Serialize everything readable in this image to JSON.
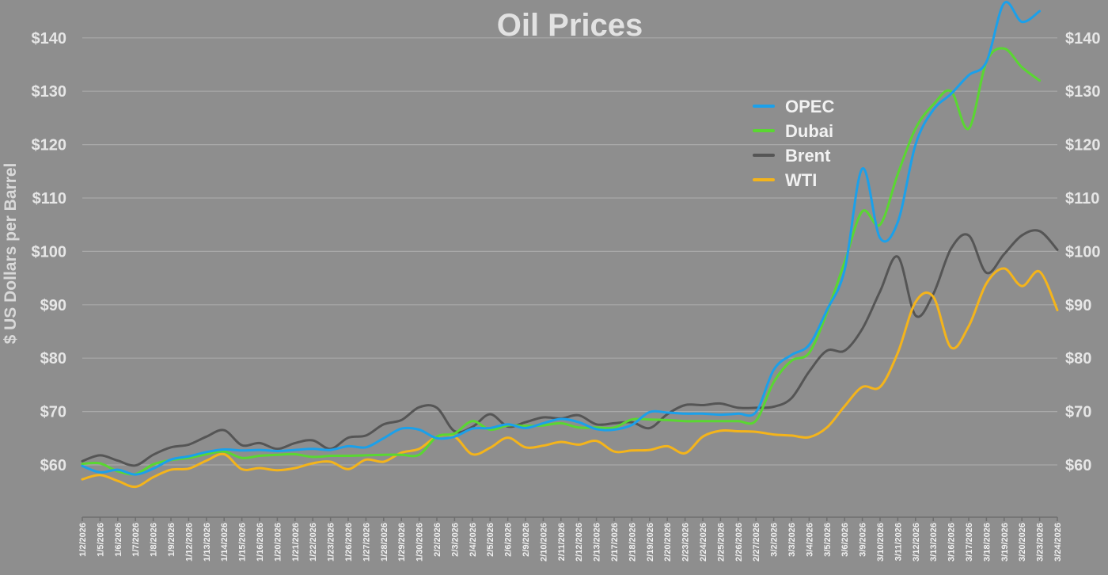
{
  "chart_data": {
    "type": "line",
    "title": "Oil Prices",
    "ylabel": "$ US Dollars per Barrel",
    "ylim": [
      50,
      148
    ],
    "y_ticks": [
      60,
      70,
      80,
      90,
      100,
      110,
      120,
      130,
      140
    ],
    "y_tick_labels": [
      "$60",
      "$70",
      "$80",
      "$90",
      "$100",
      "$110",
      "$120",
      "$130",
      "$140"
    ],
    "legend_position": "upper-right",
    "grid": true,
    "categories": [
      "1/2/2026",
      "1/5/2026",
      "1/6/2026",
      "1/7/2026",
      "1/8/2026",
      "1/9/2026",
      "1/12/2026",
      "1/13/2026",
      "1/14/2026",
      "1/15/2026",
      "1/16/2026",
      "1/20/2026",
      "1/21/2026",
      "1/22/2026",
      "1/23/2026",
      "1/26/2026",
      "1/27/2026",
      "1/28/2026",
      "1/29/2026",
      "1/30/2026",
      "2/2/2026",
      "2/3/2026",
      "2/4/2026",
      "2/5/2026",
      "2/6/2026",
      "2/9/2026",
      "2/10/2026",
      "2/11/2026",
      "2/12/2026",
      "2/13/2026",
      "2/17/2026",
      "2/18/2026",
      "2/19/2026",
      "2/20/2026",
      "2/23/2026",
      "2/24/2026",
      "2/25/2026",
      "2/26/2026",
      "2/27/2026",
      "3/2/2026",
      "3/3/2026",
      "3/4/2026",
      "3/5/2026",
      "3/6/2026",
      "3/9/2026",
      "3/10/2026",
      "3/11/2026",
      "3/12/2026",
      "3/13/2026",
      "3/16/2026",
      "3/17/2026",
      "3/18/2026",
      "3/19/2026",
      "3/20/2026",
      "3/23/2026",
      "3/24/2026"
    ],
    "series": [
      {
        "name": "OPEC",
        "color": "#1ba0ea",
        "values": [
          59.8,
          58.6,
          59.1,
          58.2,
          59.3,
          61.0,
          61.6,
          62.4,
          62.9,
          62.7,
          62.8,
          62.6,
          62.8,
          63.0,
          62.8,
          63.5,
          63.3,
          65.0,
          66.8,
          66.6,
          65.0,
          65.3,
          66.8,
          66.9,
          67.6,
          66.9,
          67.8,
          68.6,
          68.0,
          66.7,
          66.6,
          67.5,
          69.9,
          69.8,
          69.6,
          69.6,
          69.4,
          69.6,
          69.9,
          77.8,
          80.6,
          82.5,
          89.0,
          96.5,
          115.5,
          102.5,
          105.5,
          120.0,
          126.5,
          129.5,
          133.0,
          135.5,
          146.5,
          143.0,
          145.0,
          null
        ]
      },
      {
        "name": "Dubai",
        "color": "#5ad732",
        "values": [
          60.2,
          60.3,
          58.8,
          58.3,
          60.1,
          60.9,
          61.3,
          62.0,
          62.5,
          61.3,
          61.7,
          61.9,
          62.0,
          61.5,
          61.7,
          61.7,
          61.8,
          61.9,
          61.9,
          61.9,
          65.3,
          65.9,
          68.2,
          66.6,
          67.4,
          67.3,
          67.4,
          67.8,
          67.0,
          67.0,
          67.0,
          68.5,
          68.5,
          68.4,
          68.2,
          68.2,
          68.2,
          68.2,
          68.3,
          75.5,
          79.5,
          81.0,
          88.5,
          98.0,
          107.5,
          105.0,
          114.5,
          123.0,
          127.5,
          130.0,
          123.0,
          135.5,
          138.0,
          134.5,
          132.0,
          null
        ]
      },
      {
        "name": "Brent",
        "color": "#555555",
        "values": [
          60.7,
          61.8,
          60.8,
          59.9,
          61.9,
          63.3,
          63.8,
          65.3,
          66.5,
          63.7,
          64.1,
          63.0,
          64.1,
          64.6,
          63.0,
          65.1,
          65.5,
          67.6,
          68.4,
          70.8,
          70.7,
          66.3,
          67.1,
          69.5,
          67.2,
          68.0,
          68.9,
          68.7,
          69.3,
          67.6,
          67.8,
          68.0,
          66.9,
          69.5,
          71.2,
          71.2,
          71.5,
          70.7,
          70.7,
          70.9,
          72.5,
          77.5,
          81.4,
          81.4,
          85.5,
          92.5,
          99.0,
          88.0,
          92.0,
          100.5,
          103.0,
          96.0,
          99.5,
          103.0,
          103.8,
          100.3
        ]
      },
      {
        "name": "WTI",
        "color": "#f4b41b",
        "values": [
          57.3,
          58.1,
          57.0,
          55.9,
          57.7,
          59.1,
          59.3,
          60.8,
          62.0,
          59.2,
          59.4,
          59.0,
          59.4,
          60.3,
          60.6,
          59.2,
          61.0,
          60.6,
          62.3,
          63.0,
          65.3,
          65.3,
          62.0,
          63.2,
          65.1,
          63.3,
          63.6,
          64.3,
          63.8,
          64.5,
          62.5,
          62.7,
          62.8,
          63.5,
          62.2,
          65.3,
          66.4,
          66.3,
          66.2,
          65.7,
          65.5,
          65.2,
          67.0,
          71.0,
          74.6,
          74.6,
          81.0,
          90.5,
          91.5,
          82.0,
          86.0,
          94.0,
          96.8,
          93.5,
          96.2,
          89.0
        ]
      }
    ]
  }
}
